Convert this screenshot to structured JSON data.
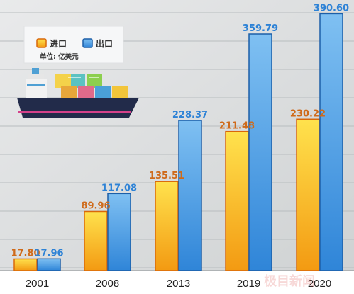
{
  "chart_data": {
    "type": "bar",
    "categories": [
      "2001",
      "2008",
      "2013",
      "2019",
      "2020"
    ],
    "series": [
      {
        "name": "进口",
        "values": [
          17.8,
          89.96,
          135.51,
          211.48,
          230.22
        ],
        "labels": [
          "17.80",
          "89.96",
          "135.51",
          "211.48",
          "230.22"
        ]
      },
      {
        "name": "出口",
        "values": [
          17.96,
          117.08,
          228.37,
          359.79,
          390.6
        ],
        "labels": [
          "17.96",
          "117.08",
          "228.37",
          "359.79",
          "390.60"
        ]
      }
    ],
    "unit_label": "单位: 亿美元",
    "ylim": [
      0,
      430
    ],
    "grid": true,
    "legend_position": "top-left"
  },
  "colors": {
    "import_light": "#ffe24d",
    "import_dark": "#f39a12",
    "import_edge": "#d9680a",
    "export_light": "#7fc0f2",
    "export_dark": "#2f85d8",
    "export_edge": "#1c5fa8",
    "import_text": "#cf6a1a",
    "export_text": "#2d82d6",
    "grid": "#b8bdbf",
    "background": "#d9dbdc"
  },
  "watermark": "极目新闻"
}
